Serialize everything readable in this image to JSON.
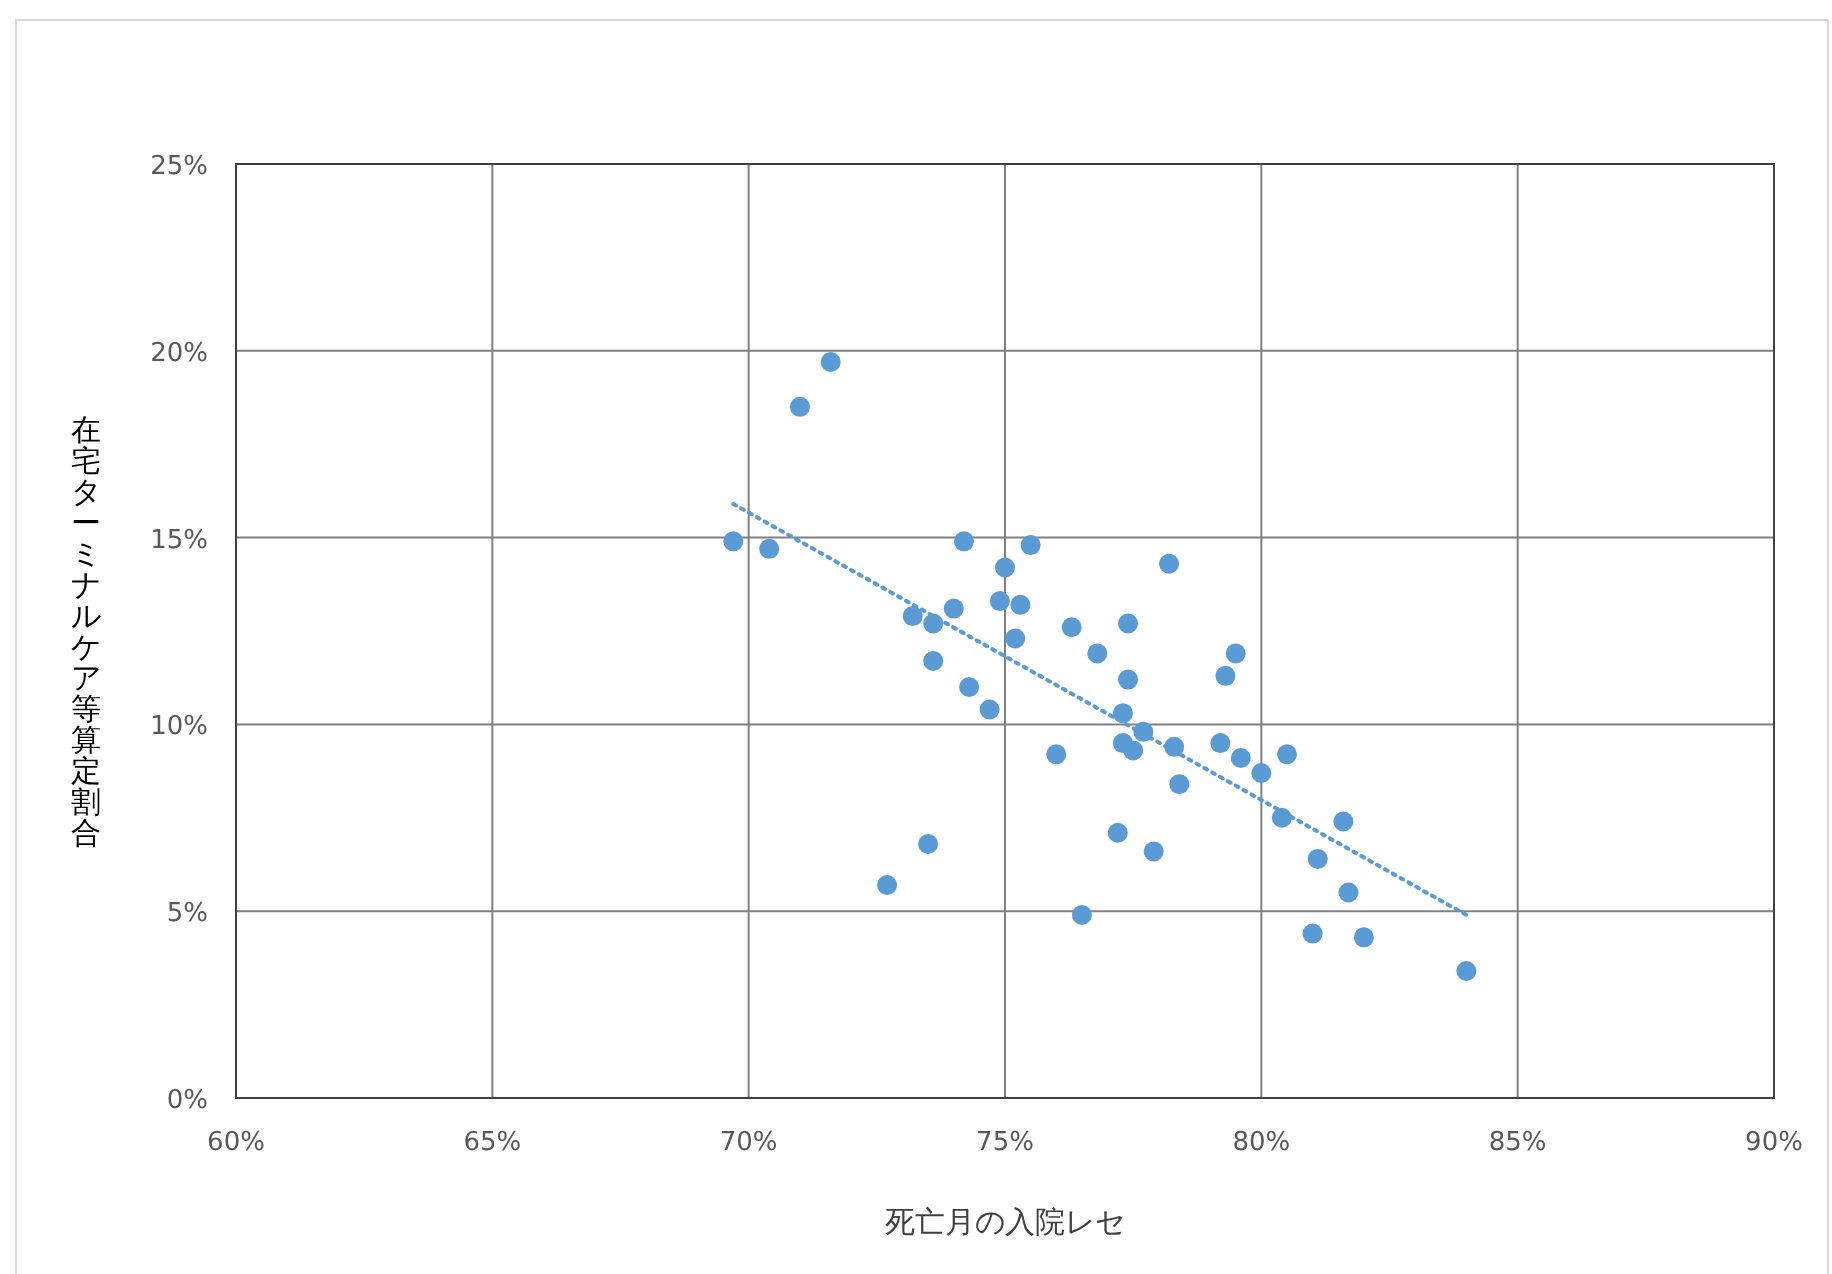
{
  "chart_data": {
    "type": "scatter",
    "xlabel": "死亡月の入院レセ",
    "ylabel": "在宅ターミナルケア等算定割合",
    "xlim": [
      60,
      90
    ],
    "ylim": [
      0,
      25
    ],
    "grid": true,
    "marker": "circle",
    "xticks": [
      {
        "value": 60,
        "label": "60%"
      },
      {
        "value": 65,
        "label": "65%"
      },
      {
        "value": 70,
        "label": "70%"
      },
      {
        "value": 75,
        "label": "75%"
      },
      {
        "value": 80,
        "label": "80%"
      },
      {
        "value": 85,
        "label": "85%"
      },
      {
        "value": 90,
        "label": "90%"
      }
    ],
    "yticks": [
      {
        "value": 0,
        "label": "0%"
      },
      {
        "value": 5,
        "label": "5%"
      },
      {
        "value": 10,
        "label": "10%"
      },
      {
        "value": 15,
        "label": "15%"
      },
      {
        "value": 20,
        "label": "20%"
      },
      {
        "value": 25,
        "label": "25%"
      }
    ],
    "series": [
      {
        "type": "scatter",
        "color": "#5b9bd5",
        "x": [
          69.7,
          70.4,
          71.0,
          71.6,
          74.2,
          75.5,
          75.0,
          74.9,
          75.3,
          74.0,
          73.2,
          73.6,
          75.2,
          76.3,
          77.4,
          78.2,
          76.8,
          77.4,
          73.6,
          74.3,
          74.7,
          77.3,
          77.7,
          76.0,
          77.3,
          77.5,
          78.3,
          79.2,
          79.6,
          79.3,
          79.5,
          78.4,
          77.2,
          77.9,
          73.5,
          72.7,
          76.5,
          80.0,
          80.5,
          80.4,
          81.6,
          81.1,
          81.7,
          81.0,
          82.0,
          84.0
        ],
        "values": [
          14.9,
          14.7,
          18.5,
          19.7,
          14.9,
          14.8,
          14.2,
          13.3,
          13.2,
          13.1,
          12.9,
          12.7,
          12.3,
          12.6,
          12.7,
          14.3,
          11.9,
          11.2,
          11.7,
          11.0,
          10.4,
          10.3,
          9.8,
          9.2,
          9.5,
          9.3,
          9.4,
          9.5,
          9.1,
          11.3,
          11.9,
          8.4,
          7.1,
          6.6,
          6.8,
          5.7,
          4.9,
          8.7,
          9.2,
          7.5,
          7.4,
          6.4,
          5.5,
          4.4,
          4.3,
          3.4
        ]
      },
      {
        "type": "line",
        "color": "#5b9bd5",
        "line_style": "dotted",
        "marker": "none",
        "x": [
          69.7,
          84.0
        ],
        "values": [
          15.9,
          4.9
        ]
      }
    ]
  }
}
